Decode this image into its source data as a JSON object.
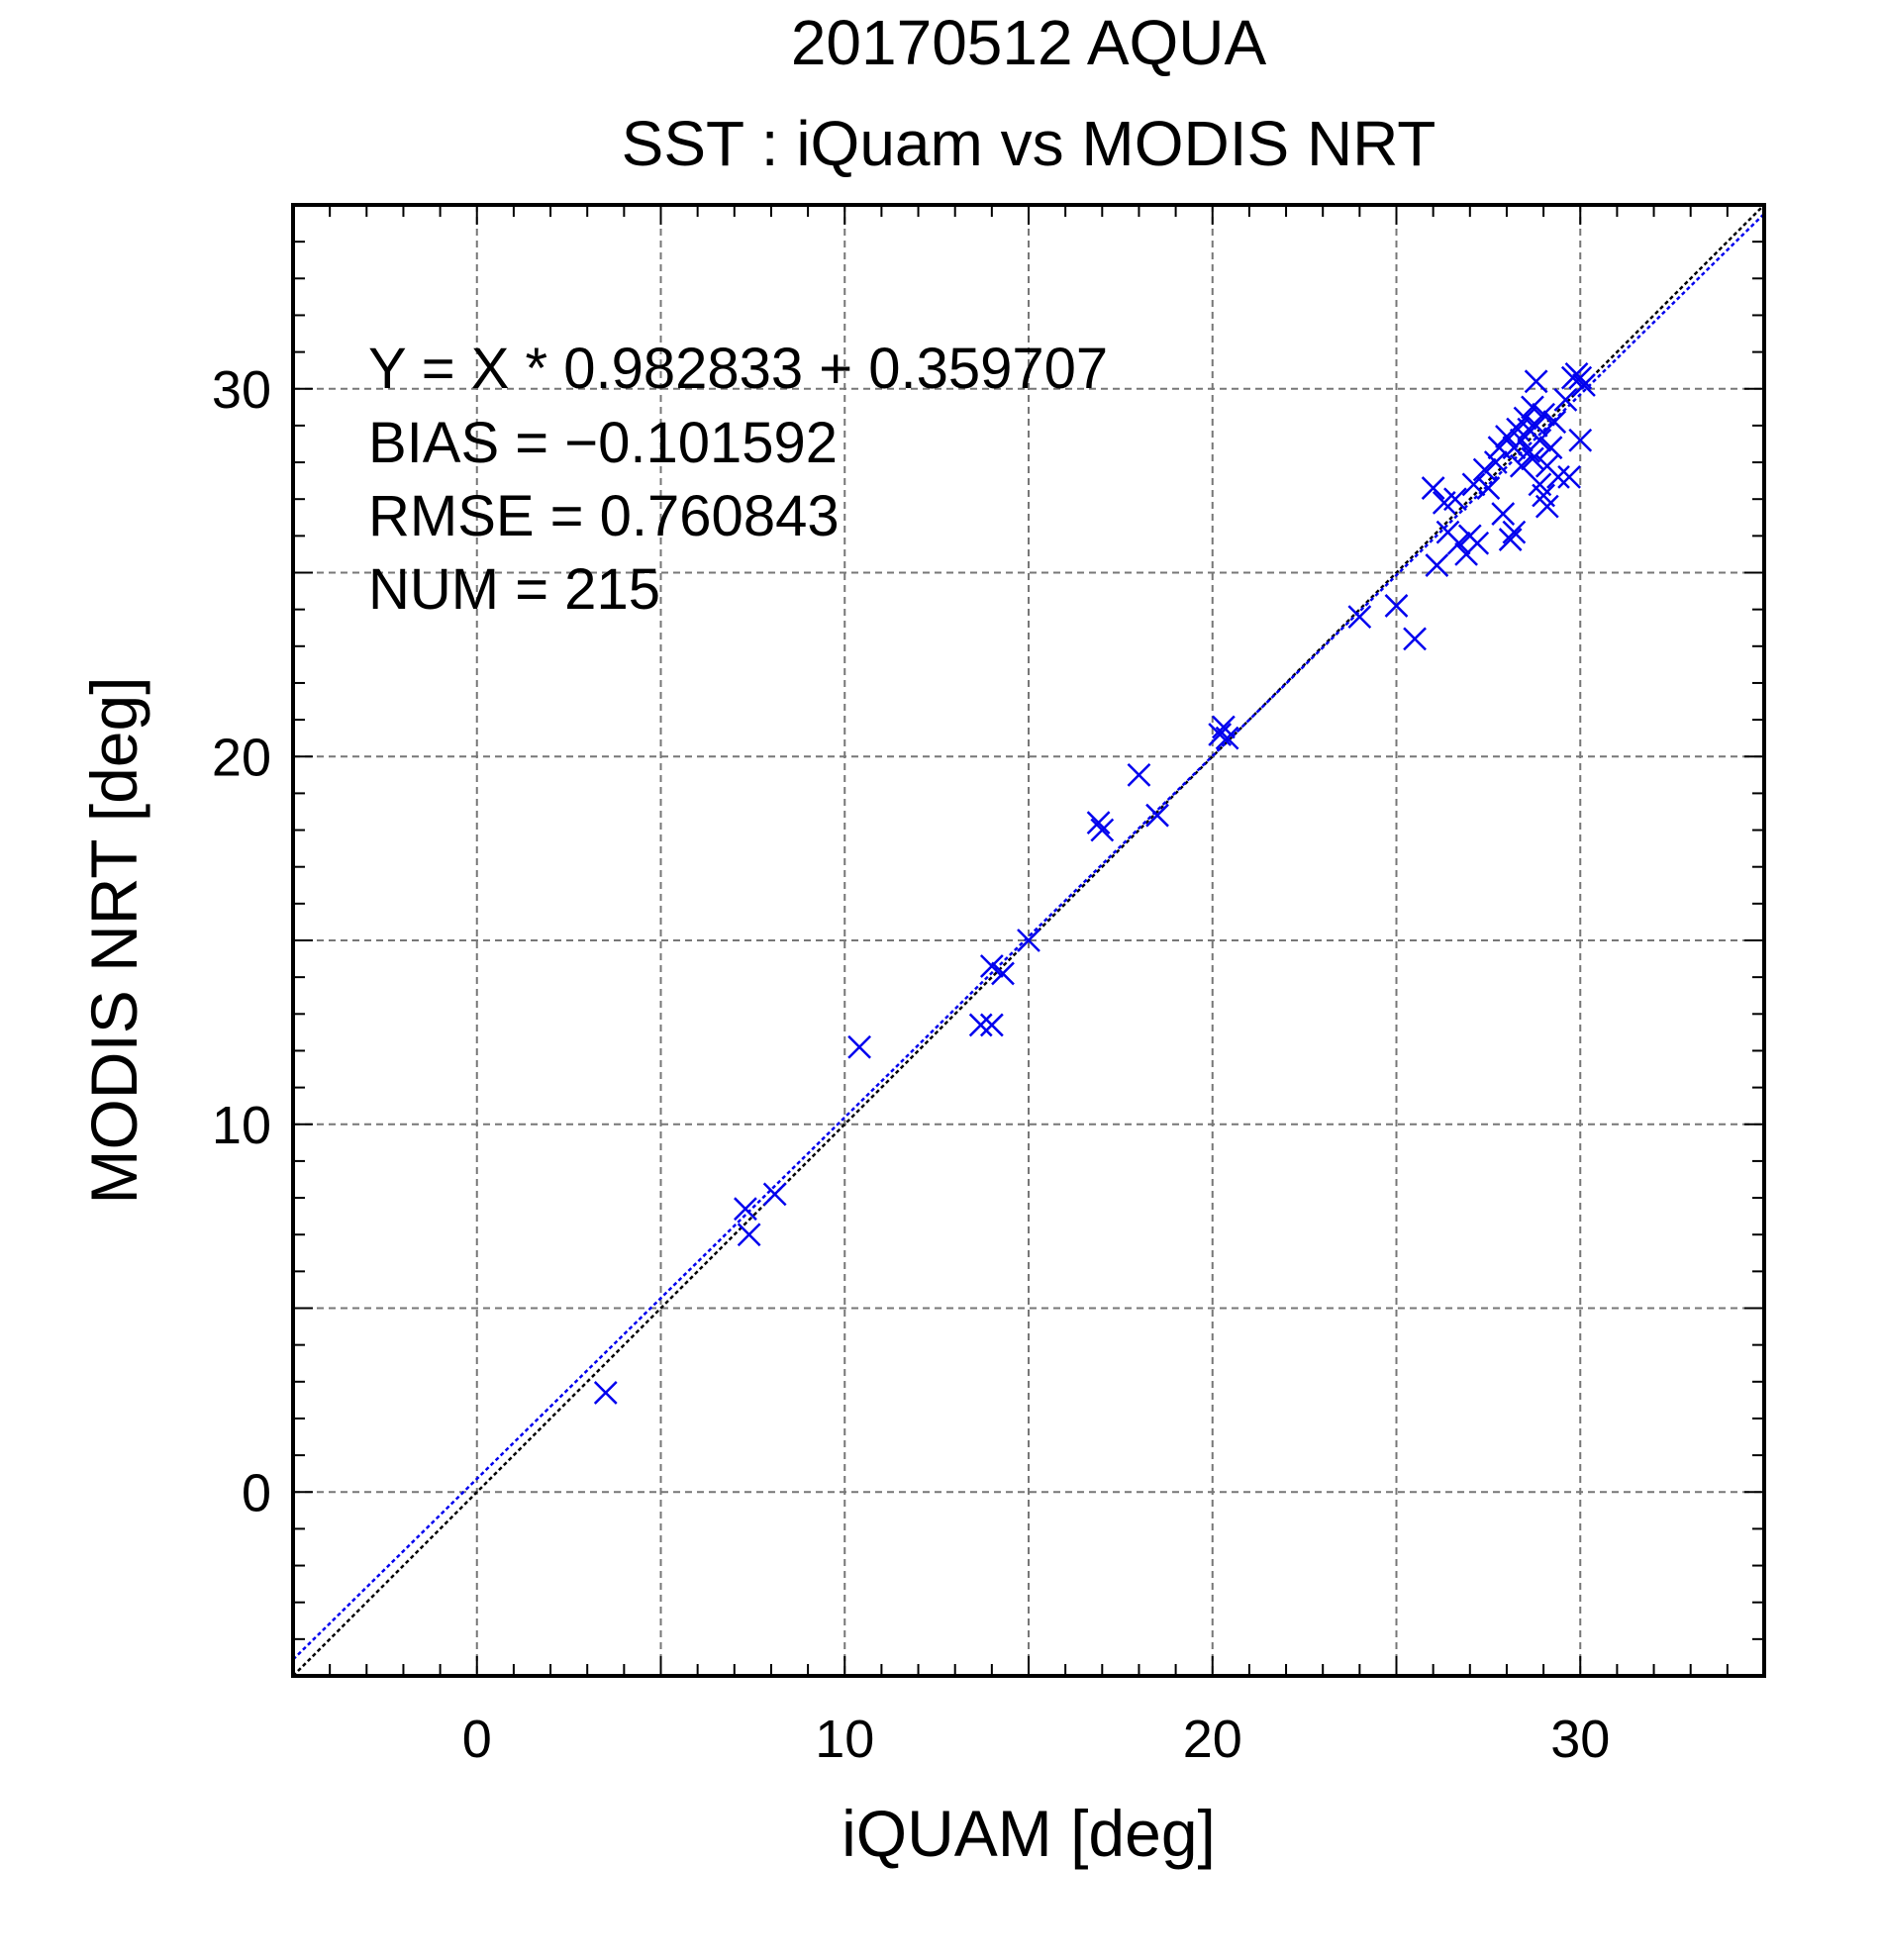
{
  "chart_data": {
    "type": "scatter",
    "title": "20170512 AQUA",
    "subtitle": "SST : iQuam vs MODIS NRT",
    "xlabel": "iQUAM [deg]",
    "ylabel": "MODIS NRT [deg]",
    "xlim": [
      -5,
      35
    ],
    "ylim": [
      -5,
      35
    ],
    "xticks": [
      "0",
      "10",
      "20",
      "30"
    ],
    "yticks": [
      "0",
      "10",
      "20",
      "30"
    ],
    "grid": true,
    "marker": "x",
    "marker_color": "#0000ee",
    "stats": {
      "regression": "Y = X * 0.982833 + 0.359707",
      "bias": "BIAS = −0.101592",
      "rmse": "RMSE = 0.760843",
      "num": "NUM = 215"
    },
    "lines": [
      {
        "kind": "identity",
        "slope": 1,
        "intercept": 0,
        "color": "#000000"
      },
      {
        "kind": "regression",
        "slope": 0.982833,
        "intercept": 0.359707,
        "color": "#0000ee"
      }
    ],
    "points": [
      [
        3.5,
        2.7
      ],
      [
        7.3,
        7.7
      ],
      [
        7.4,
        7.0
      ],
      [
        8.1,
        8.1
      ],
      [
        10.4,
        12.1
      ],
      [
        13.7,
        12.7
      ],
      [
        14.0,
        12.7
      ],
      [
        14.0,
        14.3
      ],
      [
        14.3,
        14.1
      ],
      [
        15.0,
        15.0
      ],
      [
        16.9,
        18.2
      ],
      [
        17.0,
        18.0
      ],
      [
        18.0,
        19.5
      ],
      [
        18.5,
        18.4
      ],
      [
        20.2,
        20.6
      ],
      [
        20.3,
        20.8
      ],
      [
        20.4,
        20.5
      ],
      [
        24.0,
        23.8
      ],
      [
        25.0,
        24.1
      ],
      [
        25.5,
        23.2
      ],
      [
        26.0,
        27.3
      ],
      [
        26.1,
        25.2
      ],
      [
        26.3,
        26.9
      ],
      [
        26.4,
        26.1
      ],
      [
        26.6,
        27.0
      ],
      [
        26.7,
        25.8
      ],
      [
        26.9,
        25.5
      ],
      [
        27.0,
        26.0
      ],
      [
        27.1,
        27.4
      ],
      [
        27.2,
        25.8
      ],
      [
        27.4,
        27.8
      ],
      [
        27.5,
        27.3
      ],
      [
        27.7,
        28.0
      ],
      [
        27.8,
        28.4
      ],
      [
        27.9,
        26.6
      ],
      [
        28.0,
        28.7
      ],
      [
        28.1,
        25.9
      ],
      [
        28.2,
        26.1
      ],
      [
        28.2,
        28.4
      ],
      [
        28.3,
        28.9
      ],
      [
        28.4,
        28.6
      ],
      [
        28.4,
        27.9
      ],
      [
        28.5,
        29.2
      ],
      [
        28.6,
        28.3
      ],
      [
        28.6,
        28.9
      ],
      [
        28.7,
        29.5
      ],
      [
        28.7,
        28.1
      ],
      [
        28.8,
        29.0
      ],
      [
        28.8,
        30.2
      ],
      [
        28.9,
        27.4
      ],
      [
        28.9,
        28.6
      ],
      [
        29.0,
        29.3
      ],
      [
        29.0,
        27.1
      ],
      [
        29.1,
        26.8
      ],
      [
        29.1,
        27.9
      ],
      [
        29.2,
        28.4
      ],
      [
        29.3,
        29.1
      ],
      [
        29.4,
        27.6
      ],
      [
        29.6,
        29.7
      ],
      [
        29.7,
        27.6
      ],
      [
        29.8,
        30.3
      ],
      [
        29.9,
        30.4
      ],
      [
        30.0,
        30.3
      ],
      [
        30.0,
        28.6
      ],
      [
        30.1,
        30.1
      ]
    ]
  }
}
